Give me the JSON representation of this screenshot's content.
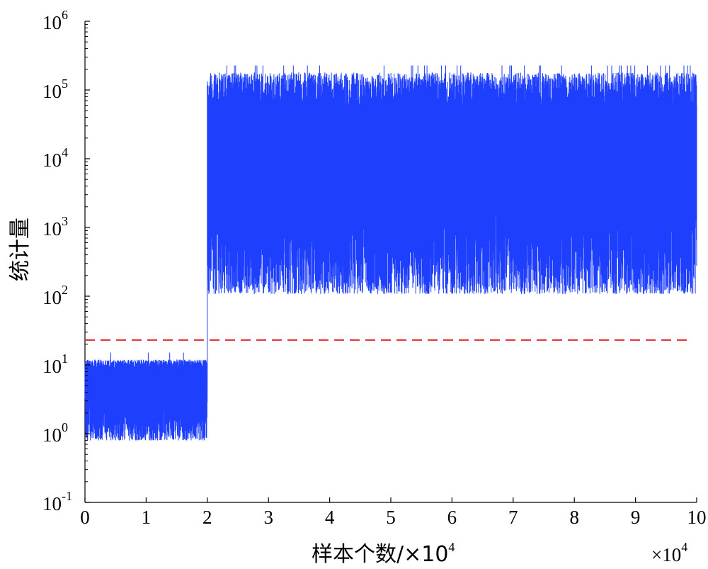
{
  "chart_data": {
    "type": "line",
    "xlabel_main": "样本个数/×10",
    "xlabel_exp": "4",
    "x_multiplier_base": "×10",
    "x_multiplier_exp": "4",
    "ylabel": "统计量",
    "xlim": [
      0,
      10
    ],
    "ylim_exp": [
      -1,
      6
    ],
    "y_scale": "log",
    "x_ticks": [
      "0",
      "1",
      "2",
      "3",
      "4",
      "5",
      "6",
      "7",
      "8",
      "9",
      "10"
    ],
    "y_ticks": [
      {
        "base": "10",
        "exp": "-1"
      },
      {
        "base": "10",
        "exp": "0"
      },
      {
        "base": "10",
        "exp": "1"
      },
      {
        "base": "10",
        "exp": "2"
      },
      {
        "base": "10",
        "exp": "3"
      },
      {
        "base": "10",
        "exp": "4"
      },
      {
        "base": "10",
        "exp": "5"
      },
      {
        "base": "10",
        "exp": "6"
      }
    ],
    "series": [
      {
        "color": "#1f3fff",
        "style": "solid",
        "segments": [
          {
            "x_range": [
              0,
              2
            ],
            "y_floor": 0.6,
            "y_ceiling": 12,
            "typical": 4
          },
          {
            "x_range": [
              2,
              10
            ],
            "y_floor": 60,
            "y_ceiling": 180000,
            "typical": 3000
          }
        ]
      },
      {
        "color": "#e8262a",
        "style": "dashed",
        "constant_y": 23
      }
    ]
  }
}
